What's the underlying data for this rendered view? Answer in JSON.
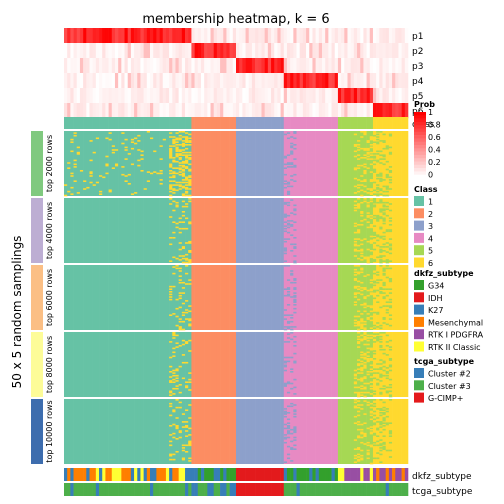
{
  "chart_data": {
    "type": "heatmap",
    "title": "membership heatmap, k = 6",
    "ylabel": "50 x 5 random samplings",
    "prob_rows": [
      "p1",
      "p2",
      "p3",
      "p4",
      "p5",
      "p6"
    ],
    "class_row_label": "class",
    "row_groups": [
      "top 2000 rows",
      "top 4000 rows",
      "top 6000 rows",
      "top 8000 rows",
      "top 10000 rows"
    ],
    "row_group_colors": [
      "#80C97F",
      "#BDAED3",
      "#FBBF85",
      "#FDFC98",
      "#3D6DAE"
    ],
    "column_segments": [
      {
        "class": 1,
        "columns": 40
      },
      {
        "class": 2,
        "columns": 14
      },
      {
        "class": 3,
        "columns": 15
      },
      {
        "class": 4,
        "columns": 17
      },
      {
        "class": 5,
        "columns": 11
      },
      {
        "class": 6,
        "columns": 11
      }
    ],
    "prob_legend": {
      "title": "Prob",
      "ticks": [
        "1",
        "0.8",
        "0.6",
        "0.4",
        "0.2",
        "0"
      ]
    },
    "class_legend": {
      "title": "Class",
      "items": [
        {
          "label": "1",
          "color": "#66C2A5"
        },
        {
          "label": "2",
          "color": "#FC8D62"
        },
        {
          "label": "3",
          "color": "#8DA0CB"
        },
        {
          "label": "4",
          "color": "#E78AC3"
        },
        {
          "label": "5",
          "color": "#A6D854"
        },
        {
          "label": "6",
          "color": "#FFD92F"
        }
      ]
    },
    "dkfz_legend": {
      "title": "dkfz_subtype",
      "items": [
        {
          "label": "G34",
          "color": "#33A02C"
        },
        {
          "label": "IDH",
          "color": "#E31A1C"
        },
        {
          "label": "K27",
          "color": "#377EB8"
        },
        {
          "label": "Mesenchymal",
          "color": "#FF7F00"
        },
        {
          "label": "RTK I PDGFRA",
          "color": "#984EA3"
        },
        {
          "label": "RTK II Classic",
          "color": "#FFFF33"
        }
      ]
    },
    "tcga_legend": {
      "title": "tcga_subtype",
      "items": [
        {
          "label": "Cluster #2",
          "color": "#377EB8"
        },
        {
          "label": "Cluster #3",
          "color": "#4DAF4A"
        },
        {
          "label": "G-CIMP+",
          "color": "#E41A1C"
        }
      ]
    },
    "bottom_annotations": [
      "dkfz_subtype",
      "tcga_subtype"
    ]
  }
}
